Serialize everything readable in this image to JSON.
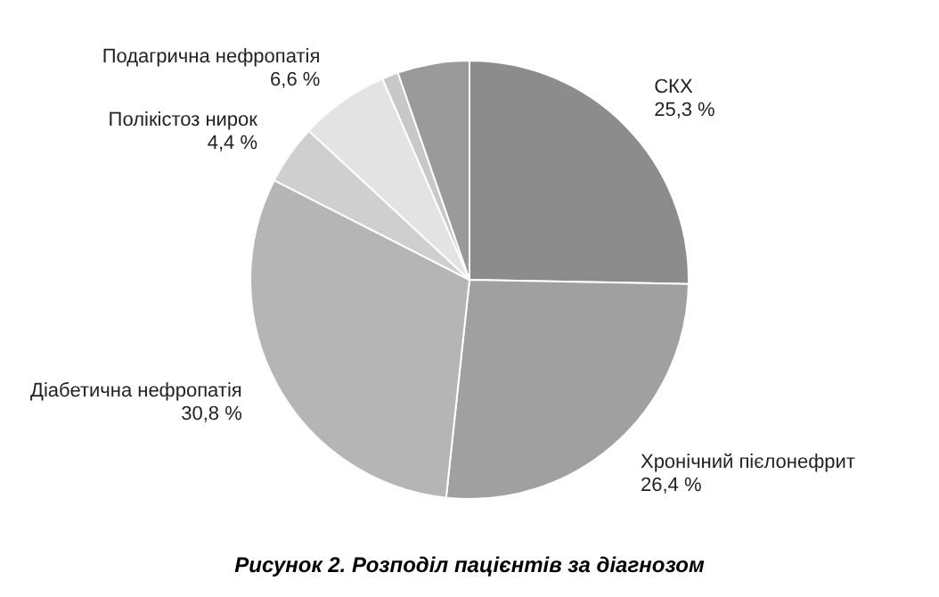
{
  "chart_data": {
    "type": "pie",
    "annotations": [
      "Рисунок 2. Розподіл пацієнтів за діагнозом"
    ],
    "categories": [
      "СКХ",
      "Хронічний пієлонефрит",
      "Діабетична нефропатія",
      "Полікістоз нирок",
      "Подагрична нефропатія",
      null,
      null
    ],
    "values": [
      25.3,
      26.4,
      30.8,
      4.4,
      6.6,
      1.2,
      5.3
    ],
    "value_labels": [
      "25,3 %",
      "26,4 %",
      "30,8 %",
      "4,4 %",
      "6,6 %",
      null,
      null
    ],
    "colors": [
      "#8c8c8c",
      "#a0a0a0",
      "#b5b5b5",
      "#cfcfcf",
      "#e3e3e3",
      "#c8c8c8",
      "#9a9a9a"
    ],
    "legend": false
  }
}
